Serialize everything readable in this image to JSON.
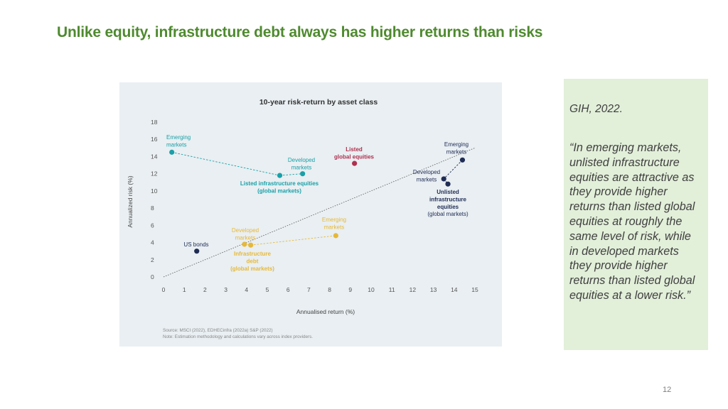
{
  "slide": {
    "title": "Unlike equity, infrastructure debt always has higher returns than risks",
    "page_number": "12"
  },
  "quote": {
    "source": "GIH, 2022.",
    "text": "“In emerging markets, unlisted infrastructure equities are attractive as they provide higher returns than listed global equities at roughly the same level of risk, while in developed markets they provide higher returns than listed global equities at a lower risk.”"
  },
  "colors": {
    "title": "#4e8a2e",
    "teal": "#1aa0a8",
    "navy": "#1f2c55",
    "gold": "#e6b83a",
    "crimson": "#b0304f",
    "quote_bg": "#e2efd9",
    "chart_bg": "#e9eff2"
  },
  "chart_data": {
    "type": "scatter",
    "title": "10-year risk-return by asset class",
    "xlabel": "Annualised return (%)",
    "ylabel": "Annualized risk (%)",
    "xlim": [
      0,
      15
    ],
    "ylim": [
      0,
      18
    ],
    "x_ticks": [
      0,
      1,
      2,
      3,
      4,
      5,
      6,
      7,
      8,
      9,
      10,
      11,
      12,
      13,
      14,
      15
    ],
    "y_ticks": [
      0,
      2,
      4,
      6,
      8,
      10,
      12,
      14,
      16,
      18
    ],
    "grid": false,
    "reference_line": {
      "from": [
        0,
        0
      ],
      "to": [
        15,
        15
      ],
      "style": "dotted"
    },
    "groups": [
      {
        "name": "Listed infrastructure equities (global markets)",
        "color": "#1aa0a8",
        "connect": "dashed",
        "points": [
          {
            "label": "Emerging markets",
            "x": 0.4,
            "y": 14.5
          },
          {
            "label": "",
            "x": 5.6,
            "y": 11.8
          },
          {
            "label": "Developed markets",
            "x": 6.7,
            "y": 12.0
          }
        ]
      },
      {
        "name": "Unlisted infrastructure equities (global markets)",
        "color": "#1f2c55",
        "connect": "dashed",
        "points": [
          {
            "label": "Emerging markets",
            "x": 14.4,
            "y": 13.6
          },
          {
            "label": "Developed markets",
            "x": 13.5,
            "y": 11.4
          },
          {
            "label": "",
            "x": 13.7,
            "y": 10.8
          }
        ]
      },
      {
        "name": "Infrastructure debt (global markets)",
        "color": "#e6b83a",
        "connect": "dashed",
        "points": [
          {
            "label": "Developed markets",
            "x": 3.9,
            "y": 3.8
          },
          {
            "label": "",
            "x": 4.2,
            "y": 3.7
          },
          {
            "label": "Emerging markets",
            "x": 8.3,
            "y": 4.8
          }
        ]
      },
      {
        "name": "Listed global equities",
        "color": "#b0304f",
        "points": [
          {
            "label": "",
            "x": 9.2,
            "y": 13.2
          }
        ]
      },
      {
        "name": "US bonds",
        "color": "#1f2c55",
        "points": [
          {
            "label": "",
            "x": 1.6,
            "y": 3.0
          }
        ]
      }
    ],
    "labels": {
      "ll_em": "Emerging markets",
      "ll_dev": "Developed markets",
      "ll_group": "Listed infrastructure equities (global markets)",
      "lge": "Listed global equities",
      "ul_em": "Emerging markets",
      "ul_dev": "Developed markets",
      "ul_group": "Unlisted infrastructure equities",
      "ul_group_sub": "(global markets)",
      "us_bonds": "US bonds",
      "id_dev": "Developed markets",
      "id_em": "Emerging markets",
      "id_group": "Infrastructure debt (global markets)"
    },
    "source_note": "Source: MSCI (2022), EDHECinfra (2022a) S&P (2022)",
    "method_note": "Note: Estimation methodology and calculations vary across index providers."
  }
}
